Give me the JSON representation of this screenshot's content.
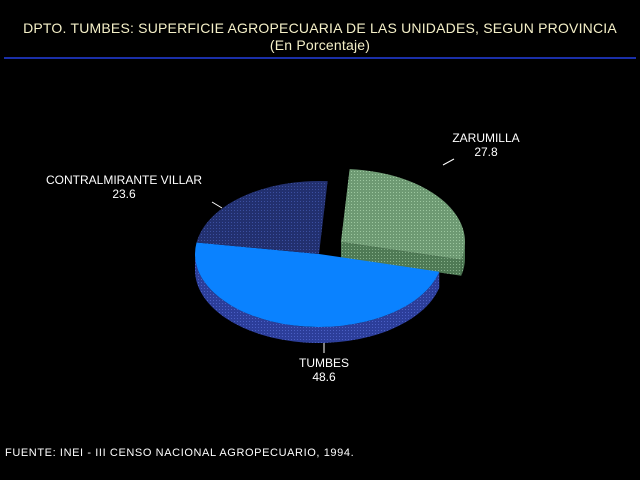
{
  "header": {
    "title": "DPTO. TUMBES: SUPERFICIE AGROPECUARIA DE LAS UNIDADES, SEGUN PROVINCIA",
    "subtitle": "(En Porcentaje)"
  },
  "footer": {
    "source": "FUENTE: INEI - III CENSO NACIONAL AGROPECUARIO, 1994."
  },
  "chart_data": {
    "type": "pie",
    "title": "DPTO. TUMBES: SUPERFICIE AGROPECUARIA DE LAS UNIDADES, SEGUN PROVINCIA",
    "subtitle": "(En Porcentaje)",
    "unit": "%",
    "three_d": true,
    "slices": [
      {
        "label": "ZARUMILLA",
        "value": 27.8,
        "value_label": "27.8",
        "color": "#6e9a73",
        "exploded": true
      },
      {
        "label": "TUMBES",
        "value": 48.6,
        "value_label": "48.6",
        "color": "#0a82ff",
        "exploded": false
      },
      {
        "label": "CONTRALMIRANTE VILLAR",
        "value": 23.6,
        "value_label": "23.6",
        "color": "#26357d",
        "exploded": false
      }
    ]
  },
  "colors": {
    "background": "#000000",
    "title_text": "#f5f0c8",
    "rule": "#1a2fa8",
    "label_text": "#ffffff"
  }
}
